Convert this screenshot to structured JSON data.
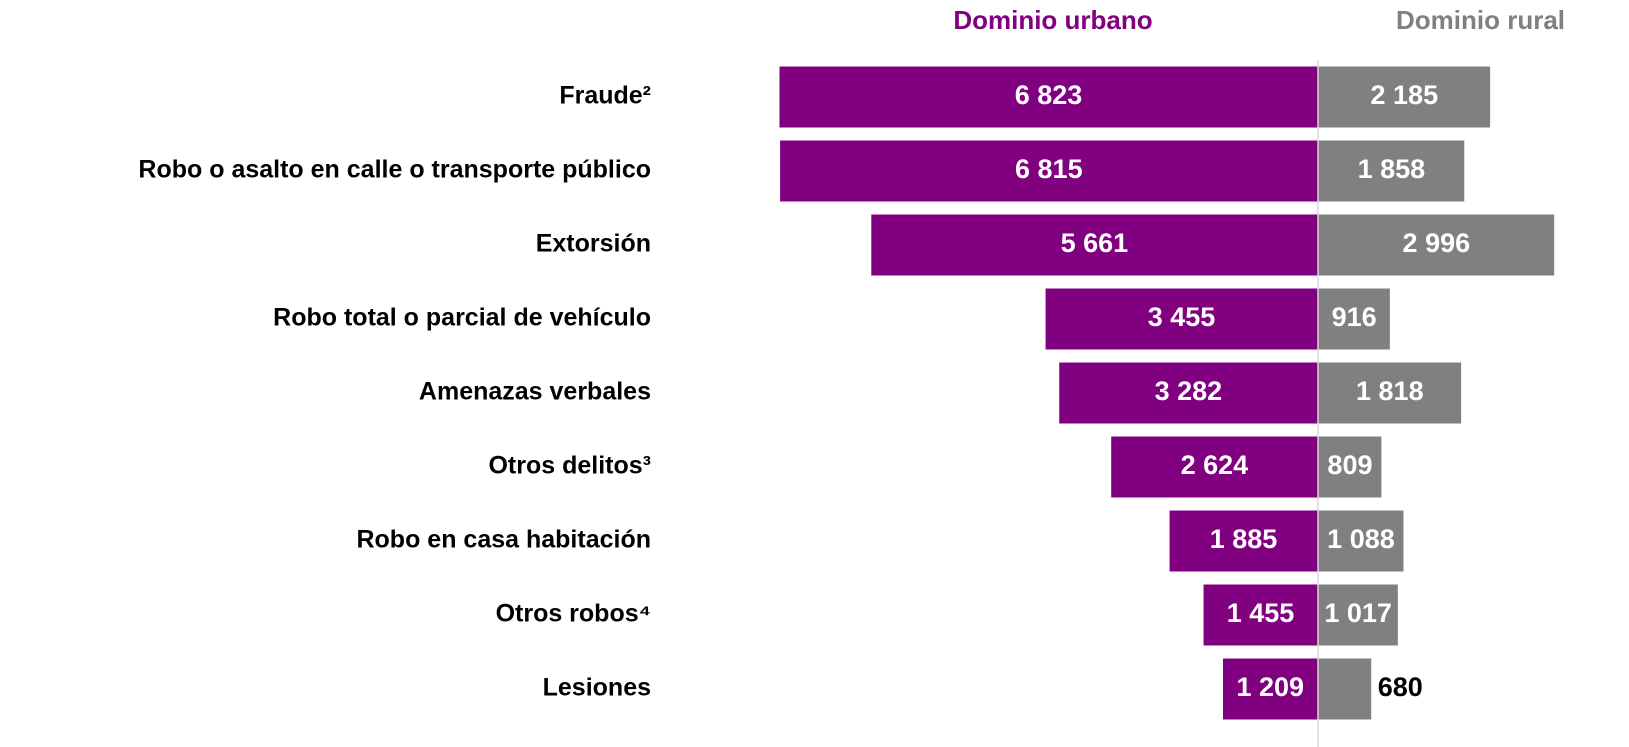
{
  "chart_data": {
    "type": "butterfly-bar",
    "categories": [
      "Fraude²",
      "Robo o asalto en calle o transporte público",
      "Extorsión",
      "Robo total o parcial de vehículo",
      "Amenazas verbales",
      "Otros delitos³",
      "Robo en casa habitación",
      "Otros robos⁴",
      "Lesiones"
    ],
    "series": [
      {
        "name": "Dominio urbano",
        "color": "#800080",
        "side": "left",
        "values": [
          6823,
          6815,
          5661,
          3455,
          3282,
          2624,
          1885,
          1455,
          1209
        ],
        "value_labels": [
          "6 823",
          "6 815",
          "5 661",
          "3 455",
          "3 282",
          "2 624",
          "1 885",
          "1 455",
          "1 209"
        ]
      },
      {
        "name": "Dominio rural",
        "color": "#808080",
        "side": "right",
        "values": [
          2185,
          1858,
          2996,
          916,
          1818,
          809,
          1088,
          1017,
          680
        ],
        "value_labels": [
          "2 185",
          "1 858",
          "2 996",
          "916",
          "1 818",
          "809",
          "1 088",
          "1 017",
          "680"
        ]
      }
    ]
  }
}
